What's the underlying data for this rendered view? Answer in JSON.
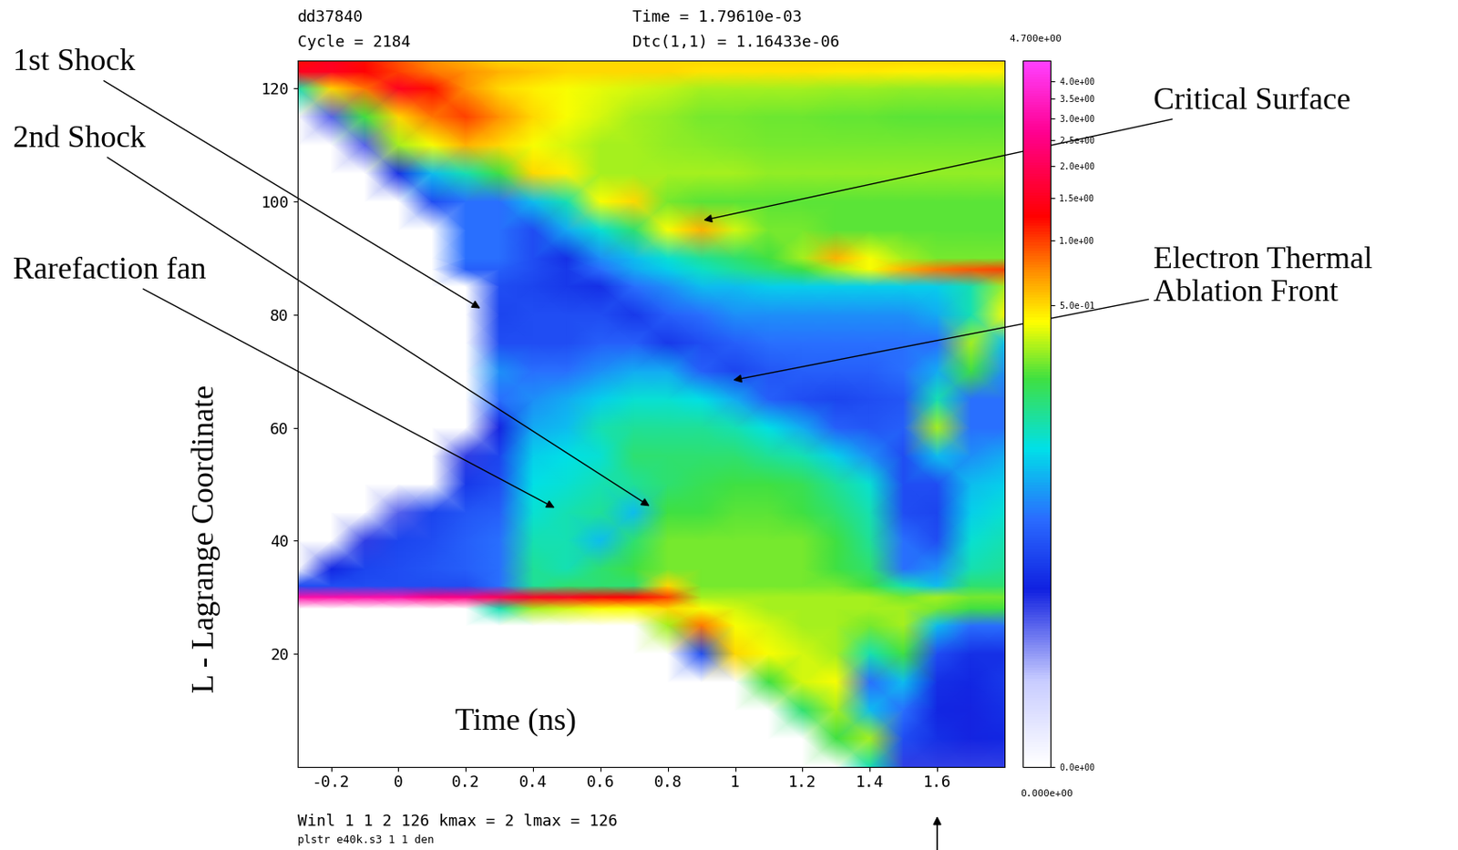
{
  "chart_data": {
    "type": "heatmap",
    "header_texts": [
      "dd37840",
      "Cycle = 2184",
      "Time = 1.79610e-03",
      "Dtc(1,1) = 1.16433e-06"
    ],
    "footer_texts": [
      "Winl 1 1 2 126 kmax = 2 lmax = 126",
      "plstr e40k.s3 1 1 den"
    ],
    "xlabel": "Time (ns)",
    "ylabel": "L - Lagrange Coordinate",
    "xlim": [
      -0.3,
      1.8
    ],
    "ylim": [
      0,
      125
    ],
    "xticks": [
      -0.2,
      0,
      0.2,
      0.4,
      0.6,
      0.8,
      1,
      1.2,
      1.4,
      1.6
    ],
    "yticks": [
      20,
      40,
      60,
      80,
      100,
      120
    ],
    "x": [
      -0.3,
      -0.2,
      -0.1,
      0.0,
      0.1,
      0.2,
      0.3,
      0.4,
      0.5,
      0.6,
      0.7,
      0.8,
      0.9,
      1.0,
      1.1,
      1.2,
      1.3,
      1.4,
      1.5,
      1.6,
      1.7,
      1.8
    ],
    "y": [
      0,
      5,
      10,
      15,
      20,
      25,
      28,
      30,
      32,
      35,
      40,
      45,
      50,
      55,
      60,
      65,
      70,
      75,
      80,
      85,
      88,
      90,
      95,
      100,
      105,
      110,
      115,
      120,
      123,
      125
    ],
    "cells": [
      [
        0,
        0,
        0,
        0,
        0,
        0,
        0,
        0,
        0,
        0,
        0,
        0,
        0,
        0,
        0,
        0,
        0,
        0.1,
        0.002,
        0.002,
        0.002,
        0.002
      ],
      [
        0,
        0,
        0,
        0,
        0,
        0,
        0,
        0,
        0,
        0,
        0,
        0,
        0,
        0,
        0,
        0,
        0.2,
        0.3,
        0.01,
        0.005,
        0.003,
        0.004
      ],
      [
        0,
        0,
        0,
        0,
        0,
        0,
        0,
        0,
        0,
        0,
        0,
        0,
        0,
        0,
        0,
        0.15,
        0.3,
        0.05,
        0.02,
        0.004,
        0.003,
        0.005
      ],
      [
        0,
        0,
        0,
        0,
        0,
        0,
        0,
        0,
        0,
        0,
        0,
        0,
        0,
        0,
        0.2,
        0.35,
        0.4,
        0.02,
        0.05,
        0.005,
        0.004,
        0.006
      ],
      [
        0,
        0,
        0,
        0,
        0,
        0,
        0,
        0,
        0,
        0,
        0,
        0,
        0.01,
        0.5,
        0.4,
        0.35,
        0.3,
        0.1,
        0.2,
        0.01,
        0.005,
        0.005
      ],
      [
        0,
        0,
        0,
        0,
        0,
        0,
        0,
        0,
        0,
        0,
        0,
        0.3,
        0.8,
        0.4,
        0.35,
        0.3,
        0.3,
        0.25,
        0.3,
        0.05,
        0.02,
        0.02
      ],
      [
        0,
        0,
        0,
        0,
        0,
        0,
        0.1,
        0.3,
        0.35,
        0.4,
        0.4,
        0.5,
        0.4,
        0.35,
        0.3,
        0.3,
        0.3,
        0.3,
        0.3,
        0.25,
        0.2,
        0.2
      ],
      [
        3.0,
        3.0,
        3.0,
        3.0,
        2.5,
        2.5,
        2.0,
        1.5,
        1.5,
        1.3,
        1.3,
        1.0,
        0.3,
        0.3,
        0.3,
        0.3,
        0.3,
        0.3,
        0.25,
        0.3,
        0.25,
        0.25
      ],
      [
        0.01,
        0.01,
        0.01,
        0.01,
        0.01,
        0.01,
        0.02,
        0.12,
        0.15,
        0.15,
        0.15,
        0.5,
        0.25,
        0.25,
        0.25,
        0.25,
        0.25,
        0.2,
        0.1,
        0.05,
        0.15,
        0.15
      ],
      [
        0,
        0.004,
        0.008,
        0.01,
        0.012,
        0.015,
        0.02,
        0.12,
        0.1,
        0.15,
        0.2,
        0.25,
        0.25,
        0.25,
        0.25,
        0.25,
        0.2,
        0.15,
        0.02,
        0.03,
        0.1,
        0.12
      ],
      [
        0,
        0,
        0.002,
        0.008,
        0.01,
        0.015,
        0.02,
        0.1,
        0.1,
        0.05,
        0.15,
        0.25,
        0.25,
        0.25,
        0.25,
        0.25,
        0.2,
        0.12,
        0.02,
        0.01,
        0.08,
        0.1
      ],
      [
        0,
        0,
        0,
        0.001,
        0.008,
        0.012,
        0.015,
        0.08,
        0.1,
        0.12,
        0.05,
        0.2,
        0.2,
        0.22,
        0.22,
        0.2,
        0.15,
        0.1,
        0.01,
        0.008,
        0.06,
        0.08
      ],
      [
        0,
        0,
        0,
        0,
        0,
        0.006,
        0.01,
        0.07,
        0.08,
        0.1,
        0.12,
        0.15,
        0.18,
        0.2,
        0.2,
        0.18,
        0.12,
        0.08,
        0.01,
        0.01,
        0.05,
        0.06
      ],
      [
        0,
        0,
        0,
        0,
        0,
        0.002,
        0.008,
        0.06,
        0.07,
        0.08,
        0.15,
        0.15,
        0.15,
        0.15,
        0.12,
        0.1,
        0.06,
        0.03,
        0.01,
        0.05,
        0.03,
        0.04
      ],
      [
        0,
        0,
        0,
        0,
        0,
        0,
        0.003,
        0.04,
        0.05,
        0.1,
        0.12,
        0.12,
        0.12,
        0.1,
        0.07,
        0.04,
        0.015,
        0.012,
        0.015,
        0.3,
        0.02,
        0.02
      ],
      [
        0,
        0,
        0,
        0,
        0,
        0,
        0.02,
        0.03,
        0.04,
        0.06,
        0.08,
        0.08,
        0.07,
        0.04,
        0.015,
        0.01,
        0.008,
        0.01,
        0.012,
        0.1,
        0.02,
        0.02
      ],
      [
        0,
        0,
        0,
        0,
        0,
        0,
        0.03,
        0.02,
        0.02,
        0.03,
        0.04,
        0.04,
        0.015,
        0.008,
        0.012,
        0.015,
        0.015,
        0.015,
        0.02,
        0.04,
        0.2,
        0.03
      ],
      [
        0,
        0,
        0,
        0,
        0,
        0,
        0.01,
        0.01,
        0.01,
        0.015,
        0.015,
        0.006,
        0.01,
        0.015,
        0.02,
        0.02,
        0.02,
        0.02,
        0.02,
        0.02,
        0.3,
        0.05
      ],
      [
        0,
        0,
        0,
        0,
        0,
        0,
        0.008,
        0.01,
        0.01,
        0.01,
        0.006,
        0.015,
        0.02,
        0.03,
        0.03,
        0.03,
        0.03,
        0.03,
        0.03,
        0.04,
        0.1,
        0.4
      ],
      [
        0,
        0,
        0,
        0,
        0,
        0,
        0.01,
        0.008,
        0.006,
        0.005,
        0.02,
        0.03,
        0.05,
        0.05,
        0.06,
        0.06,
        0.06,
        0.06,
        0.06,
        0.06,
        0.1,
        0.3
      ],
      [
        0,
        0,
        0,
        0,
        0,
        0.015,
        0.015,
        0.01,
        0.006,
        0.02,
        0.04,
        0.06,
        0.09,
        0.12,
        0.15,
        0.2,
        0.3,
        0.4,
        0.6,
        0.8,
        0.9,
        1.0
      ],
      [
        0,
        0,
        0,
        0,
        0,
        0.02,
        0.02,
        0.01,
        0.005,
        0.03,
        0.05,
        0.08,
        0.12,
        0.15,
        0.2,
        0.3,
        0.6,
        0.4,
        0.3,
        0.25,
        0.25,
        0.25
      ],
      [
        0,
        0,
        0,
        0,
        0,
        0.02,
        0.02,
        0.01,
        0.04,
        0.08,
        0.15,
        0.4,
        0.6,
        0.35,
        0.25,
        0.25,
        0.22,
        0.22,
        0.22,
        0.22,
        0.22,
        0.22
      ],
      [
        0,
        0,
        0,
        0,
        0.01,
        0.02,
        0.02,
        0.05,
        0.1,
        0.4,
        0.5,
        0.25,
        0.22,
        0.22,
        0.22,
        0.22,
        0.22,
        0.22,
        0.22,
        0.22,
        0.22,
        0.22
      ],
      [
        0,
        0,
        0,
        0.005,
        0.05,
        0.1,
        0.2,
        0.5,
        0.45,
        0.3,
        0.3,
        0.3,
        0.3,
        0.3,
        0.28,
        0.28,
        0.28,
        0.28,
        0.28,
        0.28,
        0.28,
        0.28
      ],
      [
        0,
        0,
        0.001,
        0.3,
        0.4,
        0.6,
        0.5,
        0.4,
        0.35,
        0.3,
        0.3,
        0.28,
        0.27,
        0.26,
        0.25,
        0.25,
        0.25,
        0.25,
        0.25,
        0.25,
        0.25,
        0.25
      ],
      [
        0,
        0.001,
        0.2,
        0.5,
        0.8,
        1.0,
        0.7,
        0.5,
        0.4,
        0.35,
        0.3,
        0.28,
        0.25,
        0.25,
        0.24,
        0.24,
        0.23,
        0.23,
        0.22,
        0.22,
        0.22,
        0.22
      ],
      [
        0.1,
        0.5,
        0.8,
        1.5,
        1.2,
        0.7,
        0.5,
        0.45,
        0.4,
        0.38,
        0.35,
        0.33,
        0.3,
        0.3,
        0.3,
        0.3,
        0.29,
        0.29,
        0.28,
        0.28,
        0.28,
        0.28
      ],
      [
        1.5,
        1.5,
        1.3,
        1.0,
        0.8,
        0.7,
        0.6,
        0.55,
        0.5,
        0.5,
        0.5,
        0.5,
        0.48,
        0.48,
        0.47,
        0.47,
        0.46,
        0.46,
        0.45,
        0.45,
        0.45,
        0.45
      ],
      [
        1.2,
        1.5,
        1.2,
        0.9,
        0.7,
        0.6,
        0.5,
        0.5,
        0.5,
        0.5,
        0.5,
        0.5,
        0.5,
        0.5,
        0.5,
        0.5,
        0.5,
        0.5,
        0.5,
        0.5,
        0.5,
        0.5
      ]
    ],
    "colorbar": {
      "range": [
        0,
        4.7
      ],
      "max_label": "4.700e+00",
      "min_label": "0.000e+00",
      "ticks": [
        {
          "value": 0,
          "label": "0.0e+00"
        },
        {
          "value": 0.5,
          "label": "5.0e-01"
        },
        {
          "value": 1.0,
          "label": "1.0e+00"
        },
        {
          "value": 1.5,
          "label": "1.5e+00"
        },
        {
          "value": 2.0,
          "label": "2.0e+00"
        },
        {
          "value": 2.5,
          "label": "2.5e+00"
        },
        {
          "value": 3.0,
          "label": "3.0e+00"
        },
        {
          "value": 3.5,
          "label": "3.5e+00"
        },
        {
          "value": 4.0,
          "label": "4.0e+00"
        }
      ]
    },
    "annotations": [
      {
        "text": "1st Shock",
        "x": 0.243,
        "y": 81.1
      },
      {
        "text": "2nd Shock",
        "x": 0.746,
        "y": 46.1
      },
      {
        "text": "Rarefaction fan",
        "x": 0.464,
        "y": 45.8
      },
      {
        "text": "Critical Surface",
        "x": 0.906,
        "y": 96.7
      },
      {
        "text": "Electron Thermal\nAblation Front",
        "x": 0.994,
        "y": 68.4
      }
    ]
  }
}
